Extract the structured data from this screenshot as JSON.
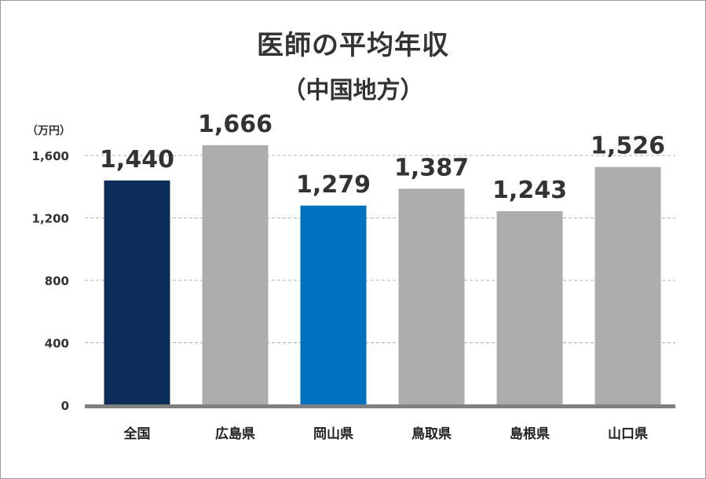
{
  "chart_data": {
    "type": "bar",
    "title": "医師の平均年収",
    "subtitle": "（中国地方）",
    "unit_label": "（万円）",
    "categories": [
      "全国",
      "広島県",
      "岡山県",
      "鳥取県",
      "島根県",
      "山口県"
    ],
    "values": [
      1440,
      1666,
      1279,
      1387,
      1243,
      1526
    ],
    "value_labels": [
      "1,440",
      "1,666",
      "1,279",
      "1,387",
      "1,243",
      "1,526"
    ],
    "bar_colors": [
      "#0b2d57",
      "#adadad",
      "#0070c0",
      "#adadad",
      "#adadad",
      "#adadad"
    ],
    "ylim": [
      0,
      1700
    ],
    "yticks": [
      0,
      400,
      800,
      1200,
      1600
    ],
    "ytick_labels": [
      "0",
      "400",
      "800",
      "1,200",
      "1,600"
    ],
    "grid": true,
    "legend": "none"
  },
  "colors": {
    "axis": "#808080",
    "grid": "#b0b0b0",
    "text": "#333333"
  }
}
